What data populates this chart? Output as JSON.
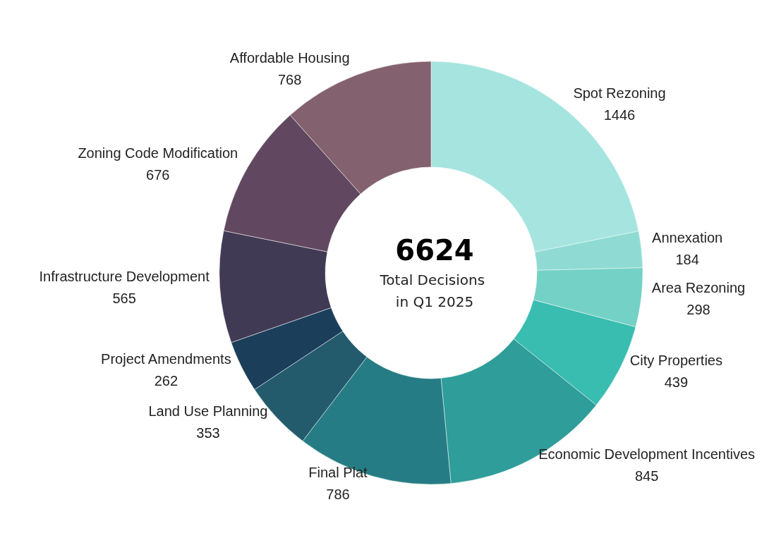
{
  "chart_data": {
    "type": "donut",
    "title": "6624",
    "subtitle": "Total Decisions in Q1 2025",
    "categories": [
      "Spot Rezoning",
      "Annexation",
      "Area Rezoning",
      "City Properties",
      "Economic Development Incentives",
      "Final Plat",
      "Land Use Planning",
      "Project Amendments",
      "Infrastructure Development",
      "Zoning Code Modification",
      "Affordable Housing"
    ],
    "values": [
      1446,
      184,
      298,
      439,
      845,
      786,
      353,
      262,
      565,
      676,
      768
    ],
    "colors": [
      "#a6e4df",
      "#8fdbd3",
      "#74d1c6",
      "#38bdb0",
      "#2f9d99",
      "#267c84",
      "#235b6d",
      "#1b3f5a",
      "#413a55",
      "#614860",
      "#83616e"
    ],
    "data_labels": true,
    "legend": false
  }
}
